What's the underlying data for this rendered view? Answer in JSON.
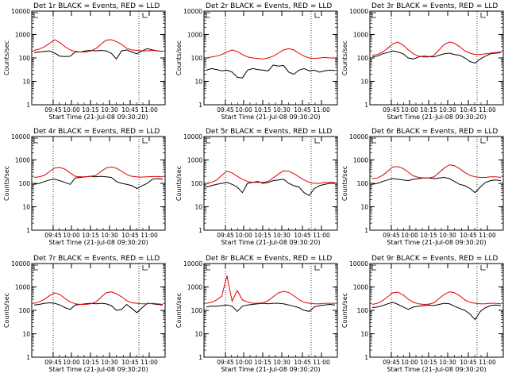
{
  "chart_data": [
    {
      "type": "line",
      "title": "Det 1r BLACK = Events, RED = LLD",
      "xlabel": "Start Time (21-Jul-08 09:30:20)",
      "ylabel": "Counts/sec",
      "x_ticks": [
        "09:45",
        "10:00",
        "10:15",
        "10:30",
        "10:45",
        "11:00"
      ],
      "y_ticks": [
        "1",
        "10",
        "100",
        "1000",
        "10000"
      ],
      "ylim": [
        1,
        10000
      ],
      "yscale": "log",
      "series": [
        {
          "name": "BLACK = Events",
          "color": "#000000",
          "values": [
            170,
            180,
            190,
            200,
            160,
            120,
            115,
            118,
            180,
            180,
            200,
            210,
            200,
            210,
            200,
            160,
            90,
            200,
            220,
            180,
            150,
            200,
            250,
            220,
            200,
            190
          ]
        },
        {
          "name": "RED = LLD",
          "color": "#e00000",
          "values": [
            210,
            240,
            300,
            420,
            600,
            450,
            300,
            220,
            190,
            180,
            180,
            200,
            250,
            380,
            580,
            600,
            500,
            380,
            260,
            220,
            210,
            200,
            200,
            210,
            200,
            190
          ]
        }
      ]
    },
    {
      "type": "line",
      "title": "Det 2r BLACK = Events, RED = LLD",
      "xlabel": "Start Time (21-Jul-08 09:30:20)",
      "ylabel": "Counts/sec",
      "x_ticks": [
        "09:45",
        "10:00",
        "10:15",
        "10:30",
        "10:45",
        "11:00"
      ],
      "y_ticks": [
        "1",
        "10",
        "100",
        "1000",
        "10000"
      ],
      "ylim": [
        1,
        10000
      ],
      "yscale": "log",
      "series": [
        {
          "name": "BLACK = Events",
          "color": "#000000",
          "values": [
            30,
            35,
            32,
            28,
            30,
            25,
            15,
            14,
            30,
            35,
            32,
            30,
            28,
            50,
            45,
            48,
            25,
            20,
            30,
            35,
            28,
            30,
            25,
            28,
            30,
            29
          ]
        },
        {
          "name": "RED = LLD",
          "color": "#e00000",
          "values": [
            100,
            110,
            120,
            140,
            180,
            220,
            190,
            140,
            110,
            100,
            95,
            90,
            100,
            120,
            160,
            220,
            250,
            220,
            160,
            120,
            100,
            95,
            100,
            105,
            100,
            100
          ]
        }
      ]
    },
    {
      "type": "line",
      "title": "Det 3r BLACK = Events, RED = LLD",
      "xlabel": "Start Time (21-Jul-08 09:30:20)",
      "ylabel": "Counts/sec",
      "x_ticks": [
        "09:45",
        "10:00",
        "10:15",
        "10:30",
        "10:45",
        "11:00"
      ],
      "y_ticks": [
        "1",
        "10",
        "100",
        "1000",
        "10000"
      ],
      "ylim": [
        1,
        10000
      ],
      "yscale": "log",
      "series": [
        {
          "name": "BLACK = Events",
          "color": "#000000",
          "values": [
            110,
            120,
            150,
            170,
            200,
            180,
            150,
            100,
            90,
            110,
            120,
            115,
            110,
            130,
            150,
            160,
            140,
            130,
            100,
            70,
            60,
            90,
            120,
            150,
            160,
            170
          ]
        },
        {
          "name": "RED = LLD",
          "color": "#e00000",
          "values": [
            130,
            140,
            180,
            260,
            400,
            470,
            350,
            220,
            150,
            120,
            110,
            110,
            130,
            220,
            380,
            480,
            420,
            300,
            200,
            160,
            140,
            140,
            150,
            160,
            170,
            180
          ]
        }
      ]
    },
    {
      "type": "line",
      "title": "Det 4r BLACK = Events, RED = LLD",
      "xlabel": "Start Time (21-Jul-08 09:30:20)",
      "ylabel": "Counts/sec",
      "x_ticks": [
        "09:45",
        "10:00",
        "10:15",
        "10:30",
        "10:45",
        "11:00"
      ],
      "y_ticks": [
        "1",
        "10",
        "100",
        "1000",
        "10000"
      ],
      "ylim": [
        1,
        10000
      ],
      "yscale": "log",
      "series": [
        {
          "name": "BLACK = Events",
          "color": "#000000",
          "values": [
            90,
            100,
            120,
            140,
            150,
            130,
            110,
            90,
            170,
            180,
            190,
            200,
            190,
            200,
            190,
            180,
            120,
            100,
            90,
            80,
            60,
            80,
            100,
            150,
            160,
            150
          ]
        },
        {
          "name": "RED = LLD",
          "color": "#e00000",
          "values": [
            180,
            190,
            220,
            320,
            450,
            480,
            400,
            280,
            200,
            190,
            190,
            200,
            220,
            320,
            450,
            500,
            440,
            330,
            240,
            200,
            190,
            185,
            190,
            195,
            195,
            190
          ]
        }
      ]
    },
    {
      "type": "line",
      "title": "Det 5r BLACK = Events, RED = LLD",
      "xlabel": "Start Time (21-Jul-08 09:30:20)",
      "ylabel": "Counts/sec",
      "x_ticks": [
        "09:45",
        "10:00",
        "10:15",
        "10:30",
        "10:45",
        "11:00"
      ],
      "y_ticks": [
        "1",
        "10",
        "100",
        "1000",
        "10000"
      ],
      "ylim": [
        1,
        10000
      ],
      "yscale": "log",
      "series": [
        {
          "name": "BLACK = Events",
          "color": "#000000",
          "values": [
            70,
            80,
            90,
            100,
            110,
            90,
            70,
            40,
            100,
            110,
            120,
            100,
            110,
            130,
            140,
            150,
            100,
            80,
            70,
            40,
            30,
            60,
            80,
            90,
            100,
            100
          ]
        },
        {
          "name": "RED = LLD",
          "color": "#e00000",
          "values": [
            100,
            110,
            140,
            220,
            330,
            280,
            200,
            150,
            120,
            110,
            110,
            110,
            120,
            170,
            250,
            340,
            330,
            260,
            190,
            140,
            110,
            100,
            100,
            110,
            110,
            110
          ]
        }
      ]
    },
    {
      "type": "line",
      "title": "Det 6r BLACK = Events, RED = LLD",
      "xlabel": "Start Time (21-Jul-08 09:30:20)",
      "ylabel": "Counts/sec",
      "x_ticks": [
        "09:45",
        "10:00",
        "10:15",
        "10:30",
        "10:45",
        "11:00"
      ],
      "y_ticks": [
        "1",
        "10",
        "100",
        "1000",
        "10000"
      ],
      "ylim": [
        1,
        10000
      ],
      "yscale": "log",
      "series": [
        {
          "name": "BLACK = Events",
          "color": "#000000",
          "values": [
            90,
            100,
            120,
            140,
            160,
            150,
            140,
            130,
            150,
            160,
            170,
            170,
            160,
            170,
            180,
            160,
            120,
            90,
            80,
            60,
            40,
            70,
            110,
            130,
            140,
            130
          ]
        },
        {
          "name": "RED = LLD",
          "color": "#e00000",
          "values": [
            160,
            170,
            220,
            330,
            500,
            520,
            430,
            300,
            210,
            180,
            170,
            170,
            190,
            290,
            450,
            620,
            560,
            420,
            290,
            220,
            190,
            180,
            180,
            190,
            190,
            180
          ]
        }
      ]
    },
    {
      "type": "line",
      "title": "Det 7r BLACK = Events, RED = LLD",
      "xlabel": "Start Time (21-Jul-08 09:30:20)",
      "ylabel": "Counts/sec",
      "x_ticks": [
        "09:45",
        "10:00",
        "10:15",
        "10:30",
        "10:45",
        "11:00"
      ],
      "y_ticks": [
        "1",
        "10",
        "100",
        "1000",
        "10000"
      ],
      "ylim": [
        1,
        10000
      ],
      "yscale": "log",
      "series": [
        {
          "name": "BLACK = Events",
          "color": "#000000",
          "values": [
            170,
            180,
            200,
            210,
            200,
            170,
            130,
            110,
            170,
            180,
            190,
            200,
            190,
            200,
            190,
            160,
            100,
            110,
            180,
            120,
            80,
            130,
            200,
            190,
            180,
            170
          ]
        },
        {
          "name": "RED = LLD",
          "color": "#e00000",
          "values": [
            200,
            230,
            300,
            420,
            560,
            480,
            320,
            230,
            190,
            180,
            180,
            190,
            230,
            360,
            560,
            620,
            510,
            380,
            260,
            210,
            200,
            190,
            190,
            200,
            190,
            180
          ]
        }
      ]
    },
    {
      "type": "line",
      "title": "Det 8r BLACK = Events, RED = LLD",
      "xlabel": "Start Time (21-Jul-08 09:30:20)",
      "ylabel": "Counts/sec",
      "x_ticks": [
        "09:45",
        "10:00",
        "10:15",
        "10:30",
        "10:45",
        "11:00"
      ],
      "y_ticks": [
        "1",
        "10",
        "100",
        "1000",
        "10000"
      ],
      "ylim": [
        1,
        10000
      ],
      "yscale": "log",
      "series": [
        {
          "name": "BLACK = Events",
          "color": "#000000",
          "values": [
            140,
            150,
            150,
            160,
            170,
            150,
            90,
            150,
            170,
            180,
            190,
            200,
            190,
            200,
            200,
            190,
            170,
            150,
            130,
            100,
            90,
            140,
            160,
            170,
            180,
            170
          ]
        },
        {
          "name": "RED = LLD",
          "color": "#e00000",
          "values": [
            200,
            220,
            280,
            400,
            3000,
            250,
            700,
            280,
            230,
            200,
            200,
            210,
            260,
            380,
            560,
            650,
            580,
            420,
            290,
            220,
            200,
            190,
            190,
            200,
            200,
            200
          ]
        }
      ]
    },
    {
      "type": "line",
      "title": "Det 9r BLACK = Events, RED = LLD",
      "xlabel": "Start Time (21-Jul-08 09:30:20)",
      "ylabel": "Counts/sec",
      "x_ticks": [
        "09:45",
        "10:00",
        "10:15",
        "10:30",
        "10:45",
        "11:00"
      ],
      "y_ticks": [
        "1",
        "10",
        "100",
        "1000",
        "10000"
      ],
      "ylim": [
        1,
        10000
      ],
      "yscale": "log",
      "series": [
        {
          "name": "BLACK = Events",
          "color": "#000000",
          "values": [
            130,
            140,
            160,
            190,
            220,
            180,
            140,
            110,
            140,
            150,
            160,
            170,
            160,
            180,
            200,
            190,
            150,
            120,
            100,
            70,
            40,
            90,
            130,
            160,
            170,
            160
          ]
        },
        {
          "name": "RED = LLD",
          "color": "#e00000",
          "values": [
            180,
            200,
            260,
            380,
            560,
            600,
            450,
            300,
            220,
            190,
            180,
            185,
            210,
            320,
            480,
            620,
            560,
            420,
            280,
            220,
            200,
            190,
            190,
            200,
            200,
            190
          ]
        }
      ]
    }
  ]
}
